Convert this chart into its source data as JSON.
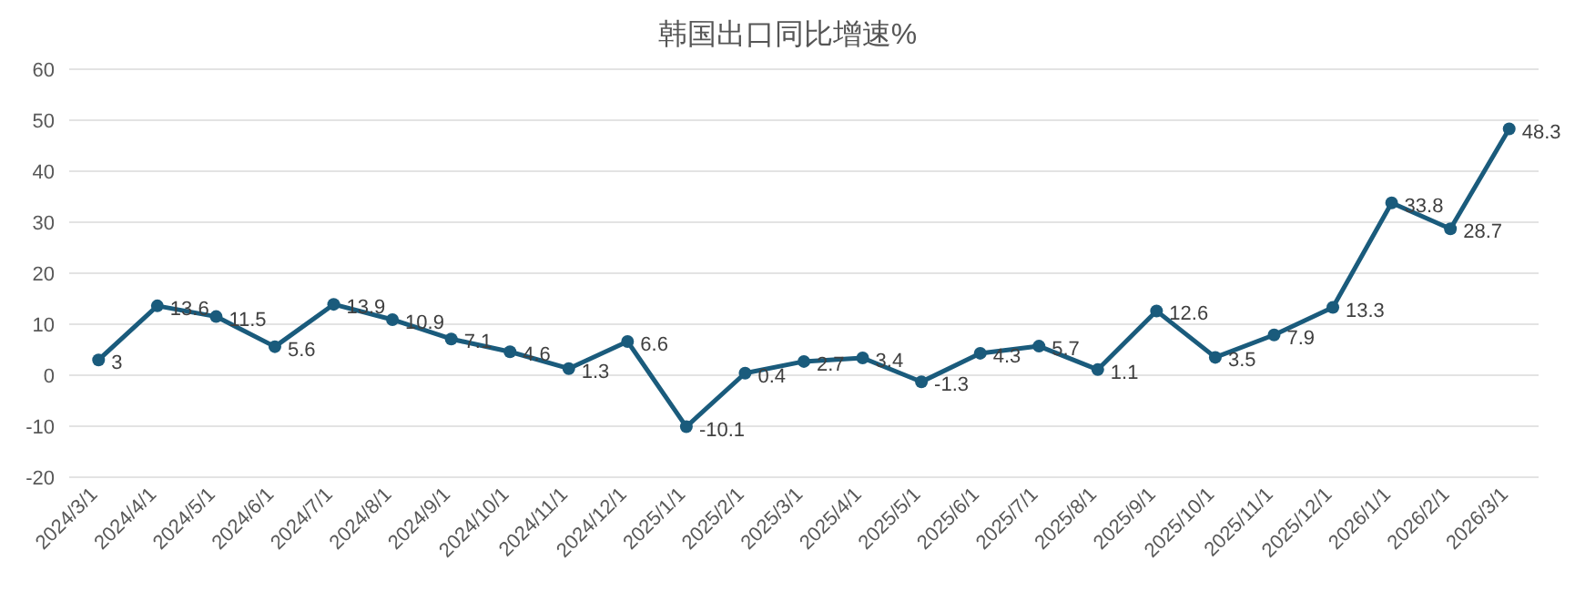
{
  "chart_data": {
    "type": "line",
    "title": "韩国出口同比增速%",
    "categories": [
      "2024/3/1",
      "2024/4/1",
      "2024/5/1",
      "2024/6/1",
      "2024/7/1",
      "2024/8/1",
      "2024/9/1",
      "2024/10/1",
      "2024/11/1",
      "2024/12/1",
      "2025/1/1",
      "2025/2/1",
      "2025/3/1",
      "2025/4/1",
      "2025/5/1",
      "2025/6/1",
      "2025/7/1",
      "2025/8/1",
      "2025/9/1",
      "2025/10/1",
      "2025/11/1",
      "2025/12/1",
      "2026/1/1",
      "2026/2/1",
      "2026/3/1"
    ],
    "series": [
      {
        "color": "#1a5b7c",
        "values": [
          3,
          13.6,
          11.5,
          5.6,
          13.9,
          10.9,
          7.1,
          4.6,
          1.3,
          6.6,
          -10.1,
          0.4,
          2.7,
          3.4,
          -1.3,
          4.3,
          5.7,
          1.1,
          12.6,
          3.5,
          7.9,
          13.3,
          33.8,
          28.7,
          48.3
        ]
      }
    ],
    "ylim": [
      -20,
      60
    ],
    "yticks": [
      -20,
      -10,
      0,
      10,
      20,
      30,
      40,
      50,
      60
    ],
    "grid": "y",
    "marker": "circle",
    "line_style": "solid",
    "data_labels": true
  }
}
